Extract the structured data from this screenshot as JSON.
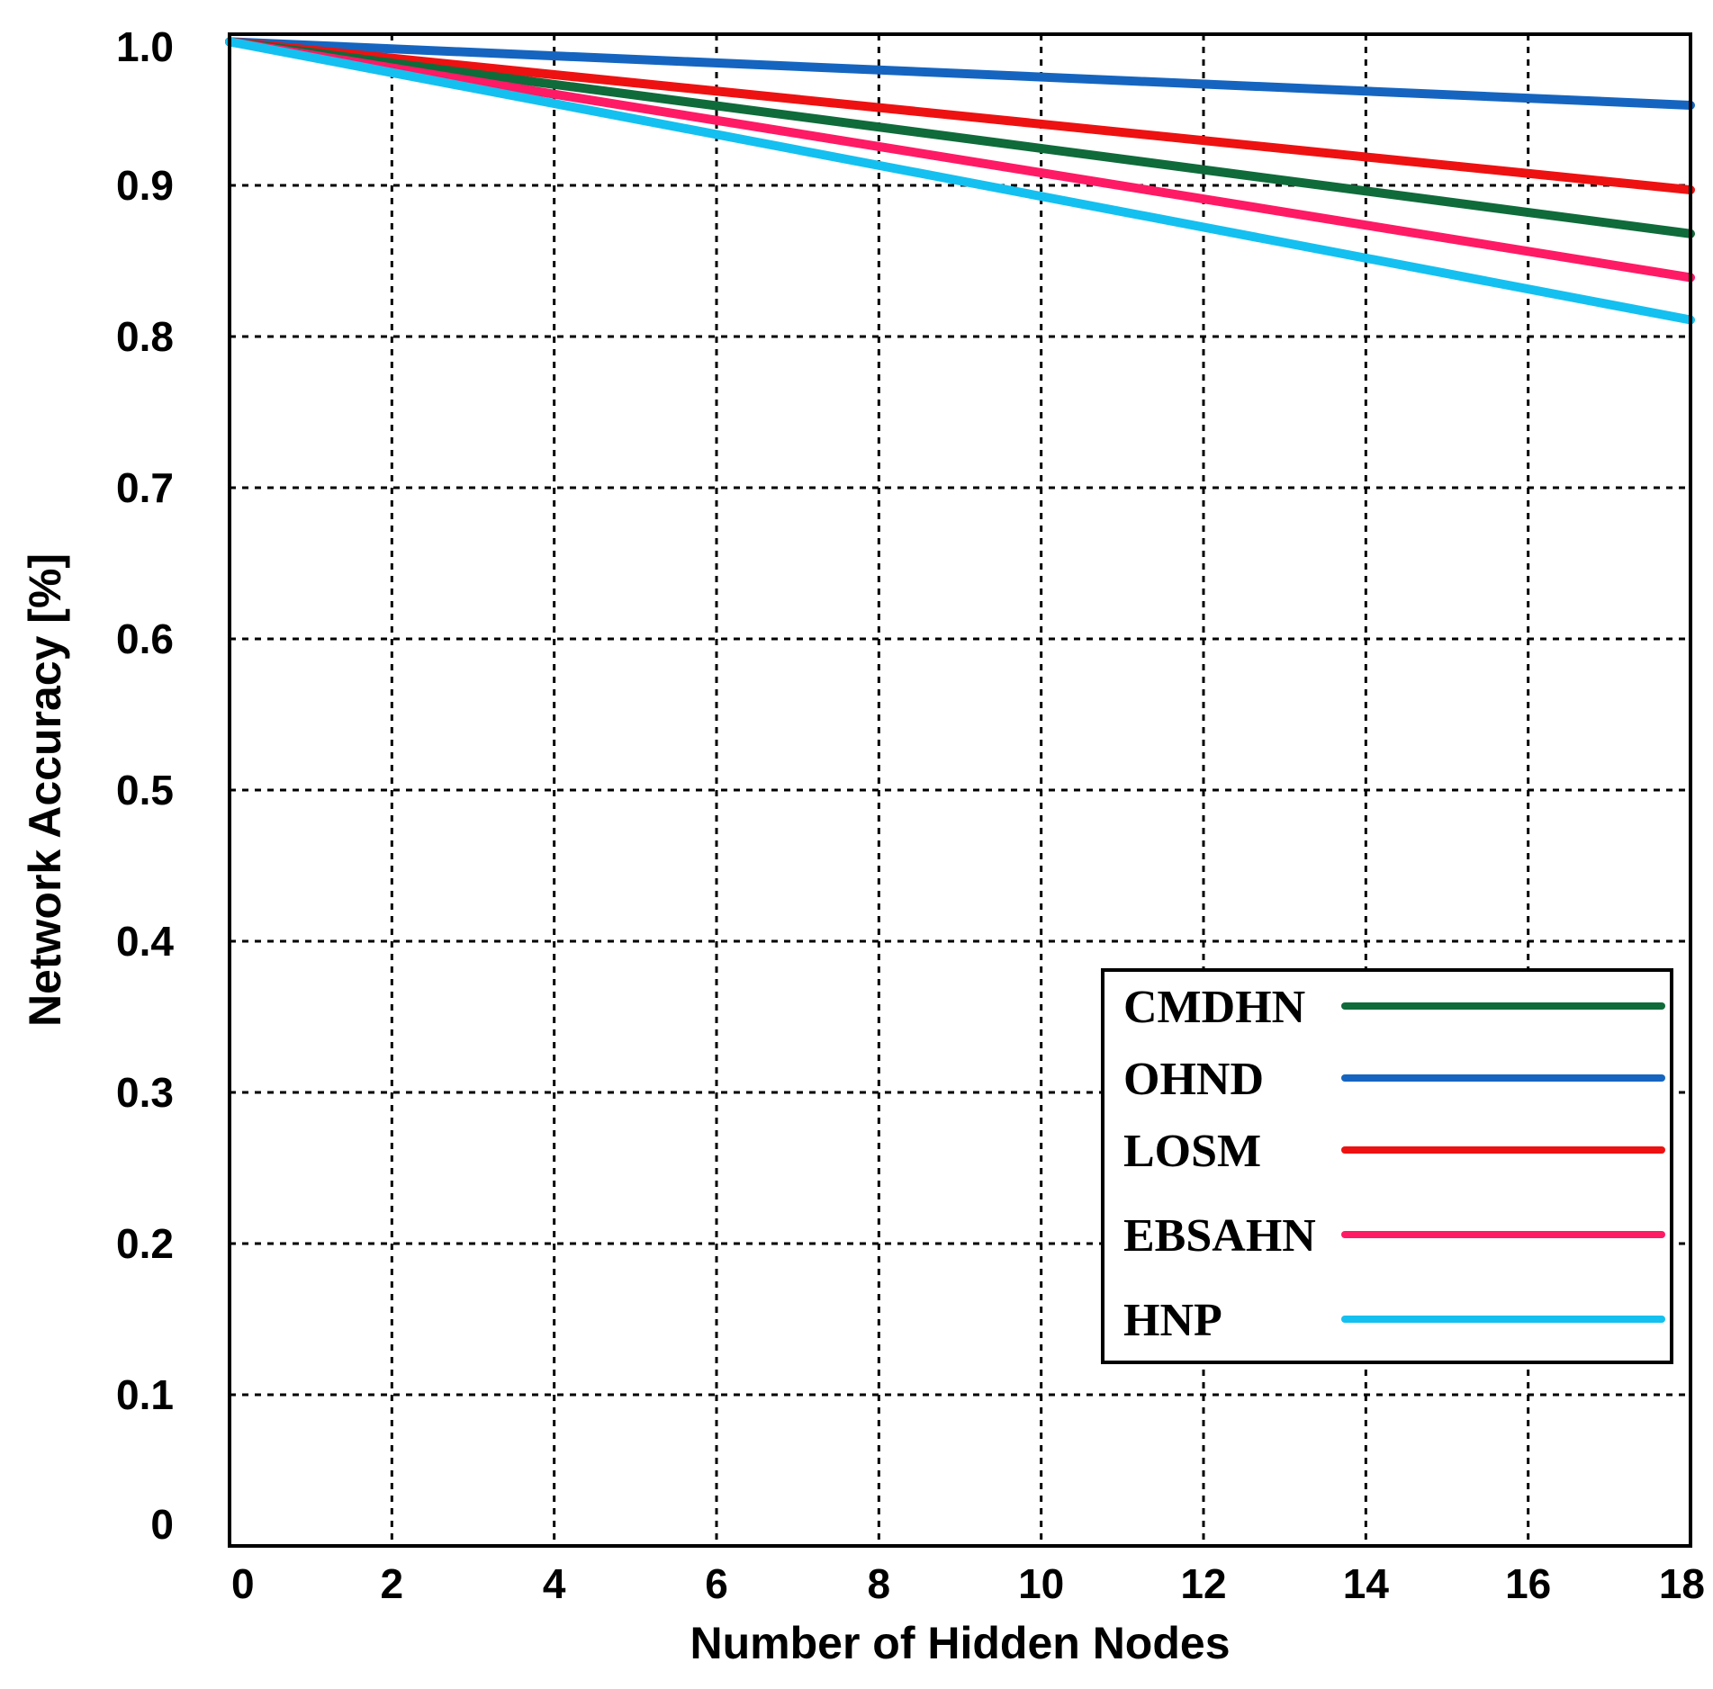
{
  "chart_data": {
    "type": "line",
    "title": "",
    "xlabel": "Number of Hidden Nodes",
    "ylabel": "Network Accuracy [%]",
    "xlim": [
      0,
      18
    ],
    "ylim": [
      0,
      1.0
    ],
    "xticks": [
      0,
      2,
      4,
      6,
      8,
      10,
      12,
      14,
      16,
      18
    ],
    "xtick_labels": [
      "0",
      "2",
      "4",
      "6",
      "8",
      "10",
      "12",
      "14",
      "16",
      "18"
    ],
    "yticks": [
      0,
      0.1,
      0.2,
      0.3,
      0.4,
      0.5,
      0.6,
      0.7,
      0.8,
      0.9,
      1.0
    ],
    "ytick_labels": [
      "0",
      "0.1",
      "0.2",
      "0.3",
      "0.4",
      "0.5",
      "0.6",
      "0.7",
      "0.8",
      "0.9",
      "1.0"
    ],
    "grid": true,
    "legend_position": "lower-right",
    "x": [
      0,
      18
    ],
    "series": [
      {
        "name": "CMDHN",
        "color": "#0f6b3a",
        "values": [
          0.995,
          0.868
        ]
      },
      {
        "name": "OHND",
        "color": "#1565c0",
        "values": [
          0.995,
          0.953
        ]
      },
      {
        "name": "LOSM",
        "color": "#ee1111",
        "values": [
          0.995,
          0.897
        ]
      },
      {
        "name": "EBSAHN",
        "color": "#ff1a66",
        "values": [
          0.995,
          0.839
        ]
      },
      {
        "name": "HNP",
        "color": "#14c0f0",
        "values": [
          0.995,
          0.811
        ]
      }
    ]
  }
}
